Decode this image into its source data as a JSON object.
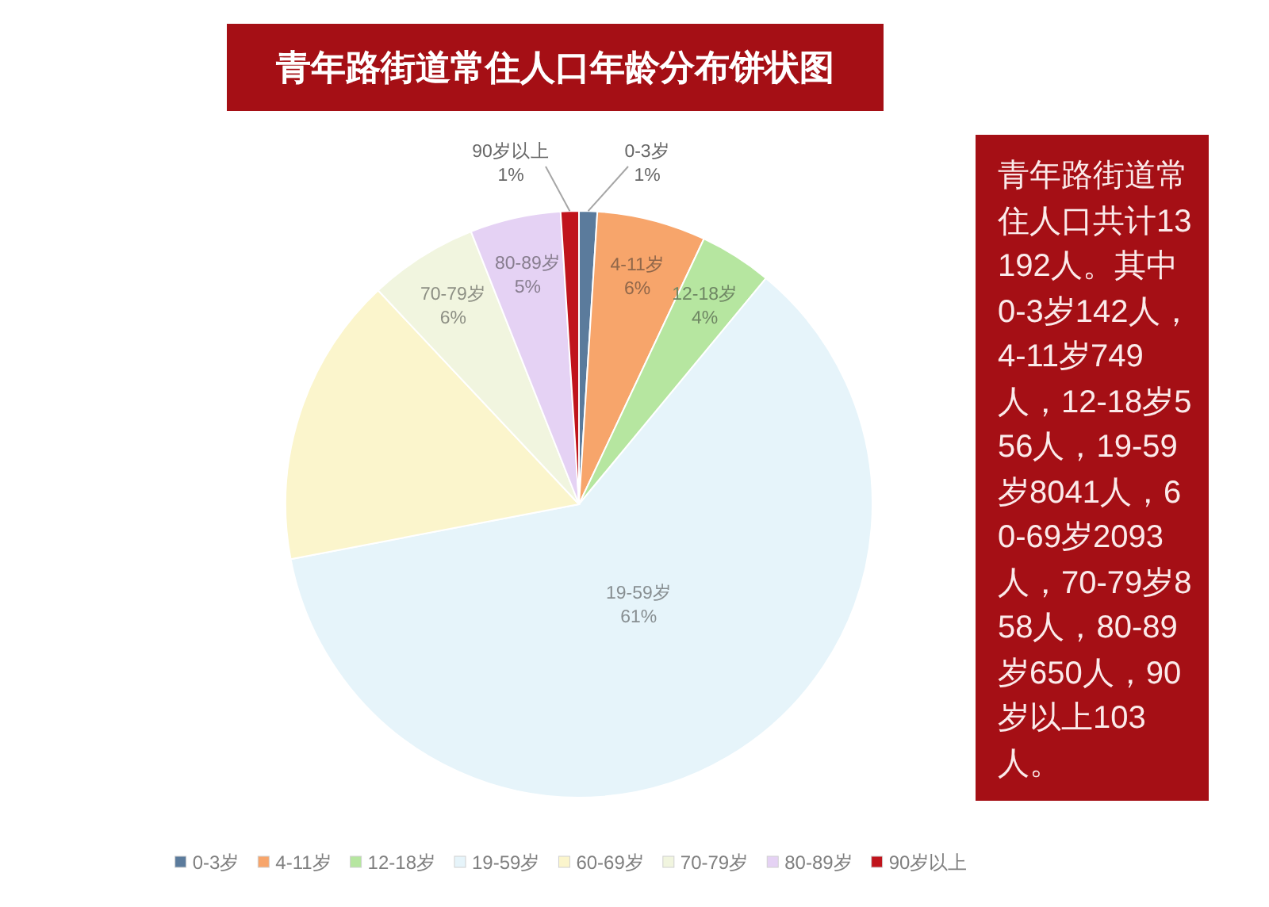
{
  "chart_data": {
    "type": "pie",
    "title": "青年路街道常住人口年龄分布饼状图",
    "categories": [
      "0-3岁",
      "4-11岁",
      "12-18岁",
      "19-59岁",
      "60-69岁",
      "70-79岁",
      "80-89岁",
      "90岁以上"
    ],
    "values": [
      1,
      6,
      4,
      61,
      16,
      6,
      5,
      1
    ],
    "colors": [
      "#5b7b9c",
      "#f7a56b",
      "#b6e6a0",
      "#e6f4fa",
      "#fbf5cc",
      "#f1f5df",
      "#e5d2f4",
      "#c0141c"
    ],
    "value_labels": [
      "1%",
      "6%",
      "4%",
      "61%",
      null,
      "6%",
      "5%",
      "1%"
    ],
    "annotations": [
      "青年路街道常住人口共计13192人。其中0-3岁142人，4-11岁749人，12-18岁556人，19-59岁8041人，60-69岁2093人，70-79岁858人，80-89岁650人，90岁以上103人。"
    ],
    "legend": "bottom"
  }
}
